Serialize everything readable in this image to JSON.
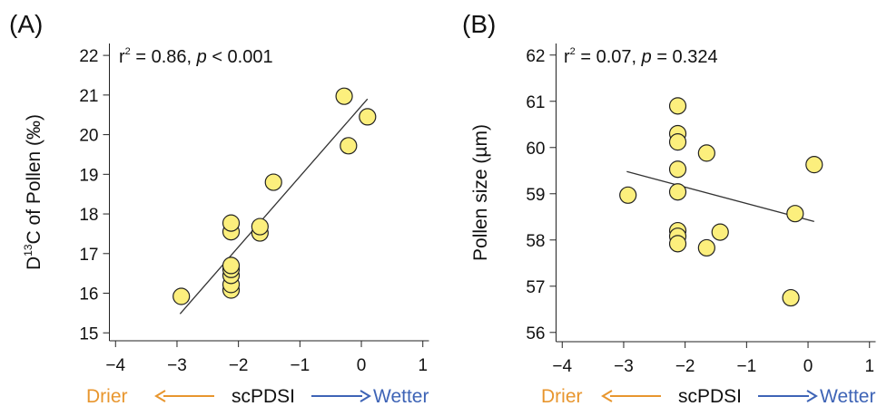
{
  "chart_data": [
    {
      "type": "scatter",
      "panel_label": "(A)",
      "stat_prefix": "r",
      "stat_sup": "2",
      "stat_mid": " = 0.86, ",
      "stat_p": "p",
      "stat_tail": " < 0.001",
      "ylabel_pre": "D",
      "ylabel_sup": "13",
      "ylabel_post": "C of Pollen (‰)",
      "xlim": [
        -4.1,
        1.1
      ],
      "ylim": [
        14.8,
        22.3
      ],
      "xticks": [
        -4,
        -3,
        -2,
        -1,
        0,
        1
      ],
      "xtick_labels": [
        "−4",
        "−3",
        "−2",
        "−1",
        "0",
        "1"
      ],
      "yticks": [
        15,
        16,
        17,
        18,
        19,
        20,
        21,
        22
      ],
      "ytick_labels": [
        "15",
        "16",
        "17",
        "18",
        "19",
        "20",
        "21",
        "22"
      ],
      "points": [
        {
          "x": -2.93,
          "y": 15.92
        },
        {
          "x": -2.12,
          "y": 16.08
        },
        {
          "x": -2.12,
          "y": 16.22
        },
        {
          "x": -2.12,
          "y": 16.45
        },
        {
          "x": -2.12,
          "y": 16.6
        },
        {
          "x": -2.12,
          "y": 16.7
        },
        {
          "x": -2.12,
          "y": 17.55
        },
        {
          "x": -2.12,
          "y": 17.77
        },
        {
          "x": -1.65,
          "y": 17.52
        },
        {
          "x": -1.65,
          "y": 17.68
        },
        {
          "x": -1.43,
          "y": 18.8
        },
        {
          "x": -0.28,
          "y": 20.97
        },
        {
          "x": -0.21,
          "y": 19.72
        },
        {
          "x": 0.1,
          "y": 20.45
        }
      ],
      "fit_line": {
        "x": [
          -2.95,
          0.1
        ],
        "y": [
          15.48,
          20.9
        ]
      }
    },
    {
      "type": "scatter",
      "panel_label": "(B)",
      "stat_prefix": "r",
      "stat_sup": "2",
      "stat_mid": " = 0.07, ",
      "stat_p": "p",
      "stat_tail": " = 0.324",
      "ylabel": "Pollen size (µm)",
      "xlim": [
        -4.1,
        1.1
      ],
      "ylim": [
        55.8,
        62.25
      ],
      "xticks": [
        -4,
        -3,
        -2,
        -1,
        0,
        1
      ],
      "xtick_labels": [
        "−4",
        "−3",
        "−2",
        "−1",
        "0",
        "1"
      ],
      "yticks": [
        56,
        57,
        58,
        59,
        60,
        61,
        62
      ],
      "ytick_labels": [
        "56",
        "57",
        "58",
        "59",
        "60",
        "61",
        "62"
      ],
      "points": [
        {
          "x": -2.93,
          "y": 58.97
        },
        {
          "x": -2.12,
          "y": 60.9
        },
        {
          "x": -2.12,
          "y": 60.3
        },
        {
          "x": -2.12,
          "y": 60.12
        },
        {
          "x": -2.12,
          "y": 59.53
        },
        {
          "x": -2.12,
          "y": 59.04
        },
        {
          "x": -2.12,
          "y": 58.2
        },
        {
          "x": -2.12,
          "y": 58.08
        },
        {
          "x": -2.12,
          "y": 57.92
        },
        {
          "x": -1.65,
          "y": 59.88
        },
        {
          "x": -1.65,
          "y": 57.83
        },
        {
          "x": -1.43,
          "y": 58.17
        },
        {
          "x": -0.28,
          "y": 56.75
        },
        {
          "x": -0.21,
          "y": 58.57
        },
        {
          "x": 0.1,
          "y": 59.63
        }
      ],
      "fit_line": {
        "x": [
          -2.95,
          0.1
        ],
        "y": [
          59.48,
          58.4
        ]
      }
    }
  ],
  "x_caption": {
    "drier": "Drier",
    "center": "scPDSI",
    "wetter": "Wetter"
  },
  "colors": {
    "point_fill": "#fcef7d",
    "point_stroke": "#222222",
    "fit_line": "#333333",
    "axis": "#222222",
    "drier": "#e8962e",
    "wetter": "#3e64b6"
  }
}
